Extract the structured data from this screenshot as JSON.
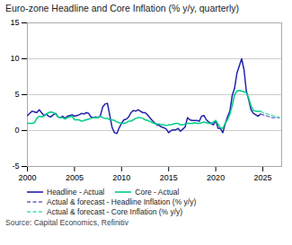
{
  "chart_data": {
    "type": "line",
    "title": "Euro-zone Headline and Core Inflation (% y/y, quarterly)",
    "caption": "Source: Capital Economics, Refinitiv",
    "xlim": [
      2000,
      2027
    ],
    "xticks": [
      2000,
      2005,
      2010,
      2015,
      2020,
      2025
    ],
    "ylim": [
      -5,
      15
    ],
    "yticks": [
      -5,
      0,
      5,
      10,
      15
    ],
    "grid": "y",
    "legend": "bottom",
    "series": [
      {
        "name": "Headline - Actual",
        "color": "#2222aa",
        "line_style": "solid",
        "x": [
          2000.0,
          2000.25,
          2000.5,
          2000.75,
          2001.0,
          2001.25,
          2001.5,
          2001.75,
          2002.0,
          2002.25,
          2002.5,
          2002.75,
          2003.0,
          2003.25,
          2003.5,
          2003.75,
          2004.0,
          2004.25,
          2004.5,
          2004.75,
          2005.0,
          2005.25,
          2005.5,
          2005.75,
          2006.0,
          2006.25,
          2006.5,
          2006.75,
          2007.0,
          2007.25,
          2007.5,
          2007.75,
          2008.0,
          2008.25,
          2008.5,
          2008.75,
          2009.0,
          2009.25,
          2009.5,
          2009.75,
          2010.0,
          2010.25,
          2010.5,
          2010.75,
          2011.0,
          2011.25,
          2011.5,
          2011.75,
          2012.0,
          2012.25,
          2012.5,
          2012.75,
          2013.0,
          2013.25,
          2013.5,
          2013.75,
          2014.0,
          2014.25,
          2014.5,
          2014.75,
          2015.0,
          2015.25,
          2015.5,
          2015.75,
          2016.0,
          2016.25,
          2016.5,
          2016.75,
          2017.0,
          2017.25,
          2017.5,
          2017.75,
          2018.0,
          2018.25,
          2018.5,
          2018.75,
          2019.0,
          2019.25,
          2019.5,
          2019.75,
          2020.0,
          2020.25,
          2020.5,
          2020.75,
          2021.0,
          2021.25,
          2021.5,
          2021.75,
          2022.0,
          2022.25,
          2022.5,
          2022.75,
          2023.0,
          2023.25,
          2023.5,
          2023.75,
          2024.0,
          2024.25,
          2024.5,
          2024.75
        ],
        "values": [
          2.1,
          2.4,
          2.7,
          2.6,
          2.5,
          2.9,
          2.5,
          2.1,
          2.3,
          2.0,
          1.9,
          2.2,
          2.4,
          1.9,
          1.8,
          2.0,
          1.7,
          2.0,
          2.1,
          2.2,
          2.0,
          2.1,
          2.2,
          2.4,
          2.3,
          2.5,
          2.4,
          1.9,
          1.8,
          1.9,
          1.8,
          2.1,
          3.3,
          3.7,
          3.8,
          2.1,
          0.4,
          -0.3,
          -0.4,
          0.4,
          1.0,
          1.5,
          1.6,
          1.9,
          2.5,
          2.8,
          2.7,
          2.9,
          2.7,
          2.5,
          2.5,
          2.2,
          1.8,
          1.4,
          1.1,
          0.8,
          0.7,
          0.5,
          0.4,
          0.2,
          -0.3,
          0.0,
          0.1,
          0.1,
          0.3,
          -0.1,
          0.2,
          0.5,
          1.8,
          1.5,
          1.4,
          1.4,
          1.4,
          1.3,
          2.0,
          2.1,
          1.5,
          1.2,
          1.0,
          0.8,
          1.4,
          0.3,
          0.3,
          -0.3,
          0.9,
          1.9,
          2.7,
          4.9,
          5.9,
          8.0,
          9.0,
          10.0,
          8.5,
          5.5,
          4.3,
          2.9,
          2.4,
          2.2,
          2.0,
          2.3
        ]
      },
      {
        "name": "Core - Actual",
        "color": "#00cc88",
        "line_style": "solid",
        "x": [
          2000.0,
          2000.25,
          2000.5,
          2000.75,
          2001.0,
          2001.25,
          2001.5,
          2001.75,
          2002.0,
          2002.25,
          2002.5,
          2002.75,
          2003.0,
          2003.25,
          2003.5,
          2003.75,
          2004.0,
          2004.25,
          2004.5,
          2004.75,
          2005.0,
          2005.25,
          2005.5,
          2005.75,
          2006.0,
          2006.25,
          2006.5,
          2006.75,
          2007.0,
          2007.25,
          2007.5,
          2007.75,
          2008.0,
          2008.25,
          2008.5,
          2008.75,
          2009.0,
          2009.25,
          2009.5,
          2009.75,
          2010.0,
          2010.25,
          2010.5,
          2010.75,
          2011.0,
          2011.25,
          2011.5,
          2011.75,
          2012.0,
          2012.25,
          2012.5,
          2012.75,
          2013.0,
          2013.25,
          2013.5,
          2013.75,
          2014.0,
          2014.25,
          2014.5,
          2014.75,
          2015.0,
          2015.25,
          2015.5,
          2015.75,
          2016.0,
          2016.25,
          2016.5,
          2016.75,
          2017.0,
          2017.25,
          2017.5,
          2017.75,
          2018.0,
          2018.25,
          2018.5,
          2018.75,
          2019.0,
          2019.25,
          2019.5,
          2019.75,
          2020.0,
          2020.25,
          2020.5,
          2020.75,
          2021.0,
          2021.25,
          2021.5,
          2021.75,
          2022.0,
          2022.25,
          2022.5,
          2022.75,
          2023.0,
          2023.25,
          2023.5,
          2023.75,
          2024.0,
          2024.25,
          2024.5,
          2024.75
        ],
        "values": [
          1.0,
          1.0,
          1.0,
          1.1,
          1.7,
          2.0,
          1.9,
          2.0,
          2.3,
          2.5,
          2.6,
          2.5,
          2.3,
          1.9,
          1.8,
          1.8,
          1.6,
          1.8,
          1.9,
          2.0,
          1.5,
          1.5,
          1.5,
          1.3,
          1.4,
          1.5,
          1.6,
          1.7,
          1.8,
          1.8,
          1.8,
          2.0,
          1.8,
          1.7,
          1.7,
          1.5,
          1.5,
          1.4,
          1.2,
          1.1,
          1.0,
          1.0,
          1.1,
          1.3,
          1.3,
          1.5,
          1.7,
          1.8,
          1.8,
          1.7,
          1.5,
          1.4,
          1.3,
          1.1,
          1.0,
          0.9,
          0.9,
          0.8,
          0.8,
          0.7,
          0.8,
          0.8,
          0.9,
          1.0,
          1.0,
          0.8,
          0.8,
          0.9,
          1.0,
          1.0,
          1.0,
          1.1,
          1.0,
          1.0,
          1.1,
          1.2,
          1.1,
          1.0,
          1.0,
          1.2,
          1.4,
          0.9,
          0.4,
          0.3,
          1.0,
          1.5,
          2.3,
          3.5,
          5.0,
          5.5,
          5.6,
          5.5,
          5.4,
          5.3,
          4.5,
          3.4,
          2.8,
          2.7,
          2.7,
          2.7
        ]
      },
      {
        "name": "Actual & forecast - Headline Inflation (% y/y)",
        "color": "#6666cc",
        "line_style": "dashed",
        "x": [
          2024.75,
          2025.0,
          2025.25,
          2025.5,
          2025.75,
          2026.0,
          2026.25,
          2026.5,
          2026.75
        ],
        "values": [
          2.3,
          2.2,
          2.1,
          2.0,
          1.9,
          1.8,
          1.8,
          1.8,
          1.8
        ]
      },
      {
        "name": "Actual & forecast - Core Inflation (% y/y)",
        "color": "#44ddaa",
        "line_style": "dashed",
        "x": [
          2024.75,
          2025.0,
          2025.25,
          2025.5,
          2025.75,
          2026.0,
          2026.25,
          2026.5,
          2026.75
        ],
        "values": [
          2.7,
          2.5,
          2.4,
          2.3,
          2.2,
          2.1,
          2.0,
          1.9,
          1.9
        ]
      }
    ]
  }
}
